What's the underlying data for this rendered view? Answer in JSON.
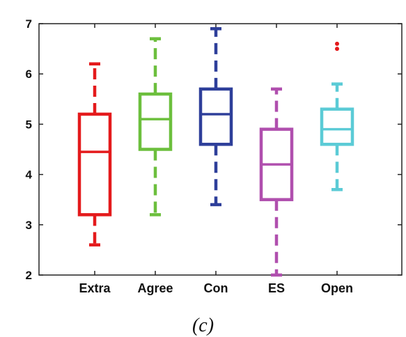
{
  "caption": "(c)",
  "chart_data": {
    "type": "box",
    "categories": [
      "Extra",
      "Agree",
      "Con",
      "ES",
      "Open"
    ],
    "ylim": [
      2,
      7
    ],
    "yticks": [
      2,
      3,
      4,
      5,
      6,
      7
    ],
    "grid": false,
    "boxes": [
      {
        "category": "Extra",
        "whisker_low": 2.6,
        "q1": 3.2,
        "median": 4.45,
        "q3": 5.2,
        "whisker_high": 6.2,
        "outliers": [],
        "color": "#e41a1c"
      },
      {
        "category": "Agree",
        "whisker_low": 3.2,
        "q1": 4.5,
        "median": 5.1,
        "q3": 5.6,
        "whisker_high": 6.7,
        "outliers": [],
        "color": "#6cbf3d"
      },
      {
        "category": "Con",
        "whisker_low": 3.4,
        "q1": 4.6,
        "median": 5.2,
        "q3": 5.7,
        "whisker_high": 6.9,
        "outliers": [],
        "color": "#2e3f9a"
      },
      {
        "category": "ES",
        "whisker_low": 2.0,
        "q1": 3.5,
        "median": 4.2,
        "q3": 4.9,
        "whisker_high": 5.7,
        "outliers": [],
        "color": "#b04fae"
      },
      {
        "category": "Open",
        "whisker_low": 3.7,
        "q1": 4.6,
        "median": 4.9,
        "q3": 5.3,
        "whisker_high": 5.8,
        "outliers": [
          6.5,
          6.6
        ],
        "color": "#5bcbd6"
      }
    ]
  }
}
